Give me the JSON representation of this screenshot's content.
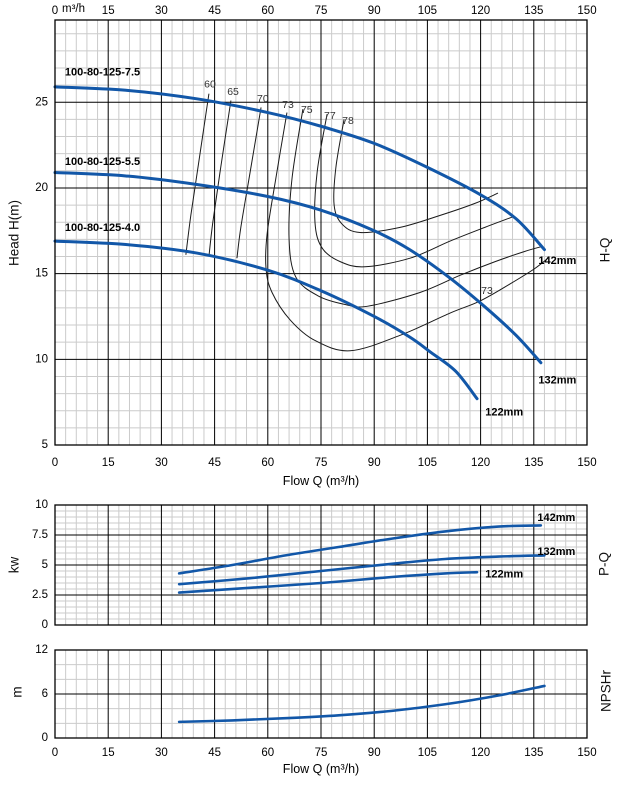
{
  "colors": {
    "curve": "#1257a8",
    "grid_minor": "#cbcbcb",
    "grid_major": "#000000",
    "contour": "#1a1a1a",
    "frame": "#000000",
    "eff_label": "#333333"
  },
  "chart_data": [
    {
      "id": "hq",
      "type": "line",
      "title": "H-Q",
      "xlabel": "Flow Q (m³/h)",
      "x_unit": "m³/h",
      "ylabel": "Head H(m)",
      "xlim": [
        0,
        150
      ],
      "xtick_step": 15,
      "x_minor": 3,
      "ylim": [
        5,
        29.8
      ],
      "yticks": [
        5,
        10,
        15,
        20,
        25
      ],
      "y_minor": 1,
      "series": [
        {
          "name": "142mm",
          "points": [
            [
              0,
              25.9
            ],
            [
              20,
              25.7
            ],
            [
              40,
              25.2
            ],
            [
              60,
              24.4
            ],
            [
              75,
              23.6
            ],
            [
              90,
              22.6
            ],
            [
              105,
              21.2
            ],
            [
              120,
              19.6
            ],
            [
              130,
              18.2
            ],
            [
              138,
              16.4
            ]
          ]
        },
        {
          "name": "132mm",
          "points": [
            [
              0,
              20.9
            ],
            [
              20,
              20.7
            ],
            [
              40,
              20.2
            ],
            [
              60,
              19.5
            ],
            [
              75,
              18.7
            ],
            [
              90,
              17.5
            ],
            [
              100,
              16.4
            ],
            [
              111,
              14.8
            ],
            [
              121,
              13.1
            ],
            [
              130,
              11.4
            ],
            [
              137,
              9.8
            ]
          ]
        },
        {
          "name": "122mm",
          "points": [
            [
              0,
              16.9
            ],
            [
              20,
              16.7
            ],
            [
              40,
              16.2
            ],
            [
              60,
              15.2
            ],
            [
              75,
              14.0
            ],
            [
              90,
              12.5
            ],
            [
              100,
              11.3
            ],
            [
              106,
              10.4
            ],
            [
              113,
              9.3
            ],
            [
              119,
              7.7
            ]
          ]
        }
      ],
      "contours": [
        {
          "label": "60",
          "points": [
            [
              43.4,
              25.5
            ],
            [
              40.6,
              21.6
            ],
            [
              38.3,
              18.4
            ],
            [
              36.9,
              16.1
            ]
          ]
        },
        {
          "label": "65",
          "points": [
            [
              49.6,
              25.1
            ],
            [
              46.8,
              21.3
            ],
            [
              44.5,
              18.0
            ],
            [
              43.4,
              16.0
            ]
          ]
        },
        {
          "label": "70",
          "points": [
            [
              58.1,
              24.7
            ],
            [
              55.0,
              20.9
            ],
            [
              52.4,
              17.7
            ],
            [
              51.3,
              15.9
            ]
          ]
        },
        {
          "label": "73",
          "points": [
            [
              65.4,
              24.4
            ],
            [
              62.3,
              20.6
            ],
            [
              59.8,
              17.3
            ],
            [
              59.5,
              15.3
            ],
            [
              61.2,
              13.9
            ],
            [
              66.3,
              12.3
            ],
            [
              73.3,
              11.1
            ],
            [
              83.2,
              10.5
            ],
            [
              97.3,
              11.4
            ],
            [
              111.4,
              12.7
            ],
            [
              119.8,
              13.4
            ],
            [
              128.3,
              14.4
            ],
            [
              135.3,
              15.3
            ],
            [
              139.0,
              15.9
            ]
          ]
        },
        {
          "label": "75",
          "points": [
            [
              69.9,
              24.6
            ],
            [
              66.8,
              20.5
            ],
            [
              66.0,
              17.0
            ],
            [
              67.9,
              14.8
            ],
            [
              74.2,
              13.7
            ],
            [
              81.8,
              13.2
            ],
            [
              88.2,
              13.1
            ],
            [
              102.9,
              13.9
            ],
            [
              114.2,
              14.9
            ],
            [
              124.1,
              15.7
            ],
            [
              132.5,
              16.3
            ],
            [
              137.6,
              16.6
            ]
          ]
        },
        {
          "label": "77",
          "points": [
            [
              76.7,
              24.3
            ],
            [
              73.9,
              20.9
            ],
            [
              73.3,
              18.0
            ],
            [
              75.3,
              16.5
            ],
            [
              80.4,
              15.7
            ],
            [
              87.4,
              15.4
            ],
            [
              100.1,
              15.9
            ],
            [
              111.4,
              16.9
            ],
            [
              121.2,
              17.7
            ],
            [
              128.9,
              18.3
            ]
          ]
        },
        {
          "label": "78",
          "points": [
            [
              81.5,
              24.0
            ],
            [
              79.2,
              21.2
            ],
            [
              78.7,
              19.0
            ],
            [
              80.9,
              17.9
            ],
            [
              86.0,
              17.4
            ],
            [
              97.3,
              17.7
            ],
            [
              108.6,
              18.4
            ],
            [
              118.4,
              19.1
            ],
            [
              124.9,
              19.7
            ]
          ]
        }
      ],
      "annotations": [
        {
          "text": "100-80-125-7.5",
          "q": 2.8,
          "v": 26.75,
          "anchor": "start",
          "style": "bold"
        },
        {
          "text": "100-80-125-5.5",
          "q": 2.8,
          "v": 21.5,
          "anchor": "start",
          "style": "bold"
        },
        {
          "text": "100-80-125-4.0",
          "q": 2.8,
          "v": 17.65,
          "anchor": "start",
          "style": "bold"
        },
        {
          "text": "142mm",
          "q": 136.3,
          "v": 15.75,
          "anchor": "start",
          "style": "bold"
        },
        {
          "text": "132mm",
          "q": 136.3,
          "v": 8.75,
          "anchor": "start",
          "style": "bold"
        },
        {
          "text": "122mm",
          "q": 121.3,
          "v": 6.9,
          "anchor": "start",
          "style": "bold"
        },
        {
          "text": "60",
          "q": 43.7,
          "v": 26.05,
          "anchor": "middle",
          "style": "eff"
        },
        {
          "text": "65",
          "q": 50.2,
          "v": 25.6,
          "anchor": "middle",
          "style": "eff"
        },
        {
          "text": "70",
          "q": 58.6,
          "v": 25.2,
          "anchor": "middle",
          "style": "eff"
        },
        {
          "text": "73",
          "q": 65.7,
          "v": 24.85,
          "anchor": "middle",
          "style": "eff"
        },
        {
          "text": "75",
          "q": 71.0,
          "v": 24.55,
          "anchor": "middle",
          "style": "eff"
        },
        {
          "text": "77",
          "q": 77.5,
          "v": 24.2,
          "anchor": "middle",
          "style": "eff"
        },
        {
          "text": "78",
          "q": 82.6,
          "v": 23.9,
          "anchor": "middle",
          "style": "eff"
        },
        {
          "text": "73",
          "q": 121.8,
          "v": 14.0,
          "anchor": "middle",
          "style": "eff"
        }
      ]
    },
    {
      "id": "pq",
      "type": "line",
      "title": "P-Q",
      "xlabel": "Flow Q (m³/h)",
      "ylabel": "kw",
      "xlim": [
        0,
        150
      ],
      "xtick_step": 15,
      "x_minor": 3,
      "ylim": [
        0,
        10
      ],
      "yticks": [
        0,
        2.5,
        5,
        7.5,
        10
      ],
      "y_minor": 0.5,
      "series": [
        {
          "name": "142mm",
          "points": [
            [
              35,
              4.3
            ],
            [
              50,
              5.0
            ],
            [
              65,
              5.8
            ],
            [
              80,
              6.5
            ],
            [
              95,
              7.2
            ],
            [
              110,
              7.8
            ],
            [
              125,
              8.2
            ],
            [
              137,
              8.3
            ]
          ]
        },
        {
          "name": "132mm",
          "points": [
            [
              35,
              3.4
            ],
            [
              55,
              3.9
            ],
            [
              75,
              4.5
            ],
            [
              95,
              5.1
            ],
            [
              110,
              5.5
            ],
            [
              125,
              5.7
            ],
            [
              138,
              5.8
            ]
          ]
        },
        {
          "name": "122mm",
          "points": [
            [
              35,
              2.7
            ],
            [
              55,
              3.1
            ],
            [
              75,
              3.5
            ],
            [
              95,
              4.0
            ],
            [
              110,
              4.3
            ],
            [
              119,
              4.4
            ]
          ]
        }
      ],
      "contours": [],
      "annotations": [
        {
          "text": "142mm",
          "q": 136.0,
          "v": 8.9,
          "anchor": "start",
          "style": "bold"
        },
        {
          "text": "132mm",
          "q": 136.0,
          "v": 6.1,
          "anchor": "start",
          "style": "bold"
        },
        {
          "text": "122mm",
          "q": 121.3,
          "v": 4.2,
          "anchor": "start",
          "style": "bold"
        }
      ]
    },
    {
      "id": "npshr",
      "type": "line",
      "title": "NPSHr",
      "xlabel": "Flow Q (m³/h)",
      "ylabel": "m",
      "xlim": [
        0,
        150
      ],
      "xtick_step": 15,
      "x_minor": 3,
      "ylim": [
        0,
        12
      ],
      "yticks": [
        0,
        6,
        12
      ],
      "y_minor": 2,
      "series": [
        {
          "name": "NPSHr",
          "points": [
            [
              35,
              2.2
            ],
            [
              50,
              2.4
            ],
            [
              65,
              2.7
            ],
            [
              80,
              3.1
            ],
            [
              95,
              3.7
            ],
            [
              110,
              4.6
            ],
            [
              125,
              5.8
            ],
            [
              138,
              7.1
            ]
          ]
        }
      ],
      "contours": [],
      "annotations": []
    }
  ]
}
